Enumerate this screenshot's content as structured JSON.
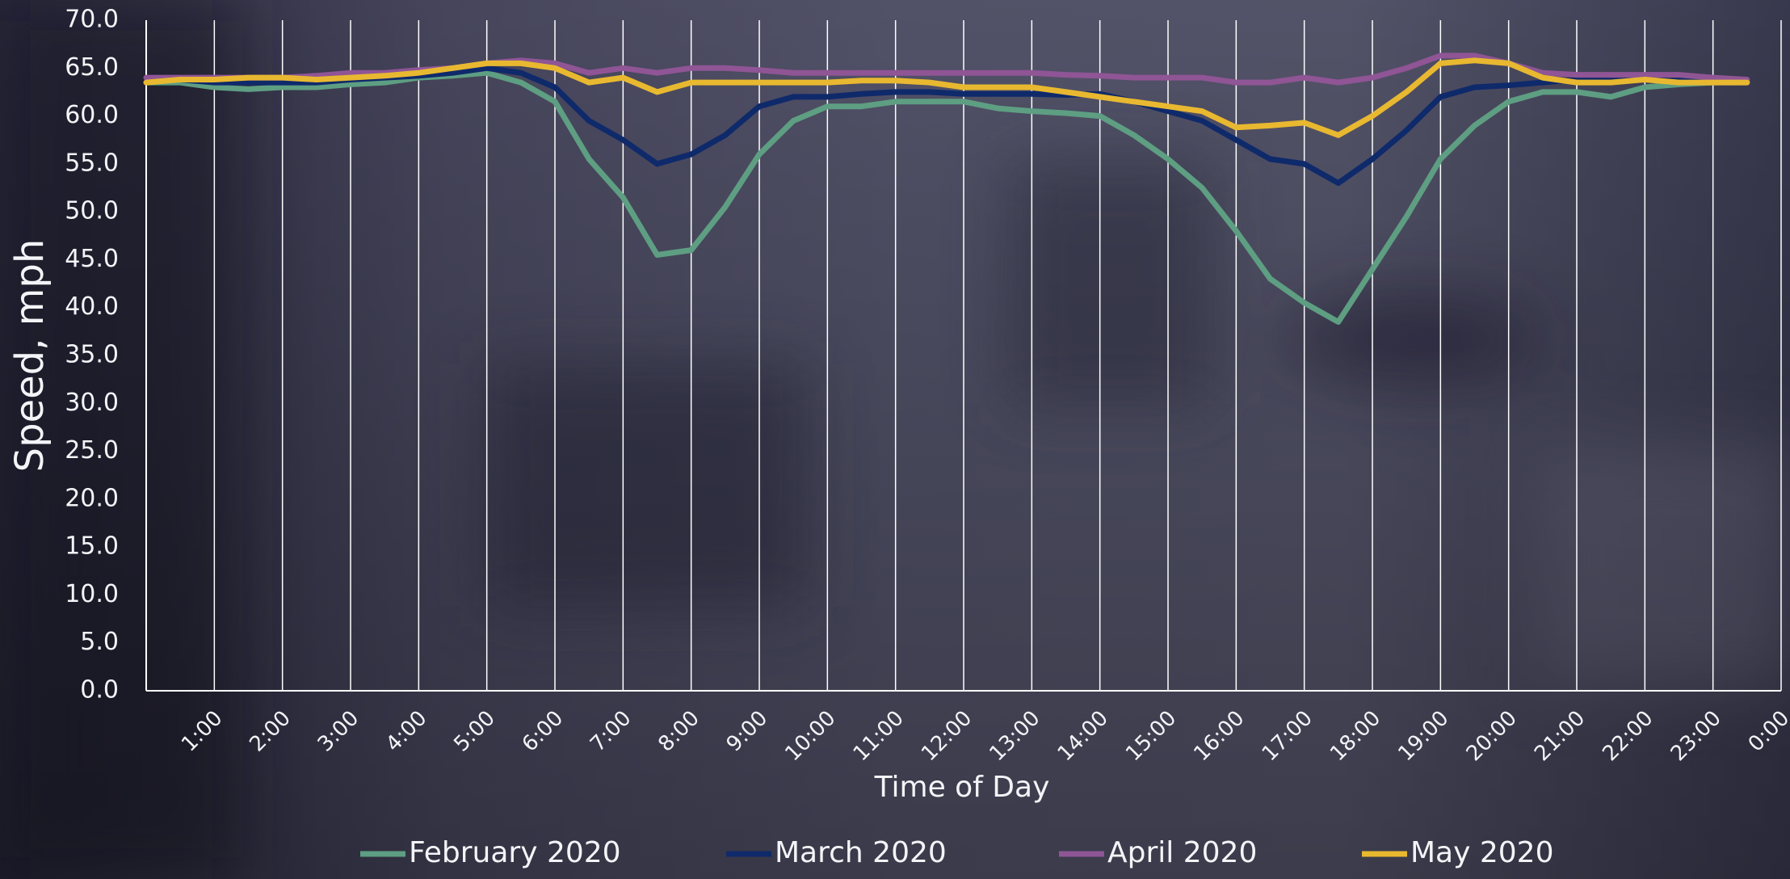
{
  "chart_data": {
    "type": "line",
    "x_label": "Time of Day",
    "y_label": "Speed, mph",
    "categories": [
      null,
      null,
      "1:00",
      null,
      "2:00",
      null,
      "3:00",
      null,
      "4:00",
      null,
      "5:00",
      null,
      "6:00",
      null,
      "7:00",
      null,
      "8:00",
      null,
      "9:00",
      null,
      "10:00",
      null,
      "11:00",
      null,
      "12:00",
      null,
      "13:00",
      null,
      "14:00",
      null,
      "15:00",
      null,
      "16:00",
      null,
      "17:00",
      null,
      "18:00",
      null,
      "19:00",
      null,
      "20:00",
      null,
      "21:00",
      null,
      "22:00",
      null,
      "23:00",
      null,
      "0:00"
    ],
    "series": [
      {
        "name": "February 2020",
        "color": "#5e9e82",
        "values": [
          63.5,
          63.5,
          63,
          62.8,
          63,
          63,
          63.3,
          63.5,
          64,
          64.2,
          64.5,
          63.5,
          61.5,
          55.5,
          51.5,
          45.5,
          46,
          50.5,
          56,
          59.5,
          61,
          61,
          61.5,
          61.5,
          61.5,
          60.8,
          60.5,
          60.3,
          60,
          58,
          55.5,
          52.5,
          48,
          43,
          40.5,
          38.5,
          44,
          49.5,
          55.5,
          59,
          61.5,
          62.5,
          62.5,
          62,
          63,
          63.3,
          63.5,
          63.5,
          null
        ]
      },
      {
        "name": "March 2020",
        "color": "#0f2a6b",
        "values": [
          63.8,
          63.8,
          63.5,
          63.5,
          63.5,
          63.5,
          63.8,
          64,
          64.2,
          64.5,
          65,
          64.5,
          63,
          59.5,
          57.5,
          55,
          56,
          58,
          61,
          62,
          62,
          62.3,
          62.5,
          62.5,
          62.3,
          62.3,
          62.3,
          62.2,
          62.3,
          61.5,
          60.5,
          59.5,
          57.5,
          55.5,
          55,
          53,
          55.5,
          58.5,
          62,
          63,
          63.2,
          63.5,
          63.8,
          64,
          64,
          64,
          63.8,
          63.8,
          null
        ]
      },
      {
        "name": "April 2020",
        "color": "#8f5595",
        "values": [
          64,
          64,
          64,
          64,
          64,
          64.2,
          64.5,
          64.5,
          64.8,
          65,
          65.5,
          65.8,
          65.5,
          64.5,
          65,
          64.5,
          65,
          65,
          64.8,
          64.5,
          64.5,
          64.5,
          64.5,
          64.5,
          64.5,
          64.5,
          64.5,
          64.3,
          64.2,
          64,
          64,
          64,
          63.5,
          63.5,
          64,
          63.5,
          64,
          65,
          66.3,
          66.3,
          65.5,
          64.5,
          64.3,
          64.3,
          64.3,
          64.3,
          64,
          63.8,
          null
        ]
      },
      {
        "name": "May 2020",
        "color": "#e8b830",
        "values": [
          63.5,
          63.8,
          63.8,
          64,
          64,
          63.8,
          64,
          64.2,
          64.5,
          65,
          65.5,
          65.5,
          65,
          63.5,
          64,
          62.5,
          63.5,
          63.5,
          63.5,
          63.5,
          63.5,
          63.7,
          63.7,
          63.5,
          63,
          63,
          63,
          62.5,
          62,
          61.5,
          61,
          60.5,
          58.8,
          59,
          59.3,
          58,
          60,
          62.5,
          65.5,
          65.8,
          65.5,
          64,
          63.5,
          63.5,
          63.8,
          63.5,
          63.5,
          63.5,
          null
        ]
      }
    ],
    "ylim": [
      0,
      70
    ],
    "yticks": [
      {
        "value": 0,
        "label": "0.0"
      },
      {
        "value": 5,
        "label": "5.0"
      },
      {
        "value": 10,
        "label": "10.0"
      },
      {
        "value": 15,
        "label": "15.0"
      },
      {
        "value": 20,
        "label": "20.0"
      },
      {
        "value": 25,
        "label": "25.0"
      },
      {
        "value": 30,
        "label": "30.0"
      },
      {
        "value": 35,
        "label": "35.0"
      },
      {
        "value": 40,
        "label": "40.0"
      },
      {
        "value": 45,
        "label": "45.0"
      },
      {
        "value": 50,
        "label": "50.0"
      },
      {
        "value": 55,
        "label": "55.0"
      },
      {
        "value": 60,
        "label": "60.0"
      },
      {
        "value": 65,
        "label": "65.0"
      },
      {
        "value": 70,
        "label": "70.0"
      }
    ],
    "grid": true,
    "legend": "bottom"
  }
}
